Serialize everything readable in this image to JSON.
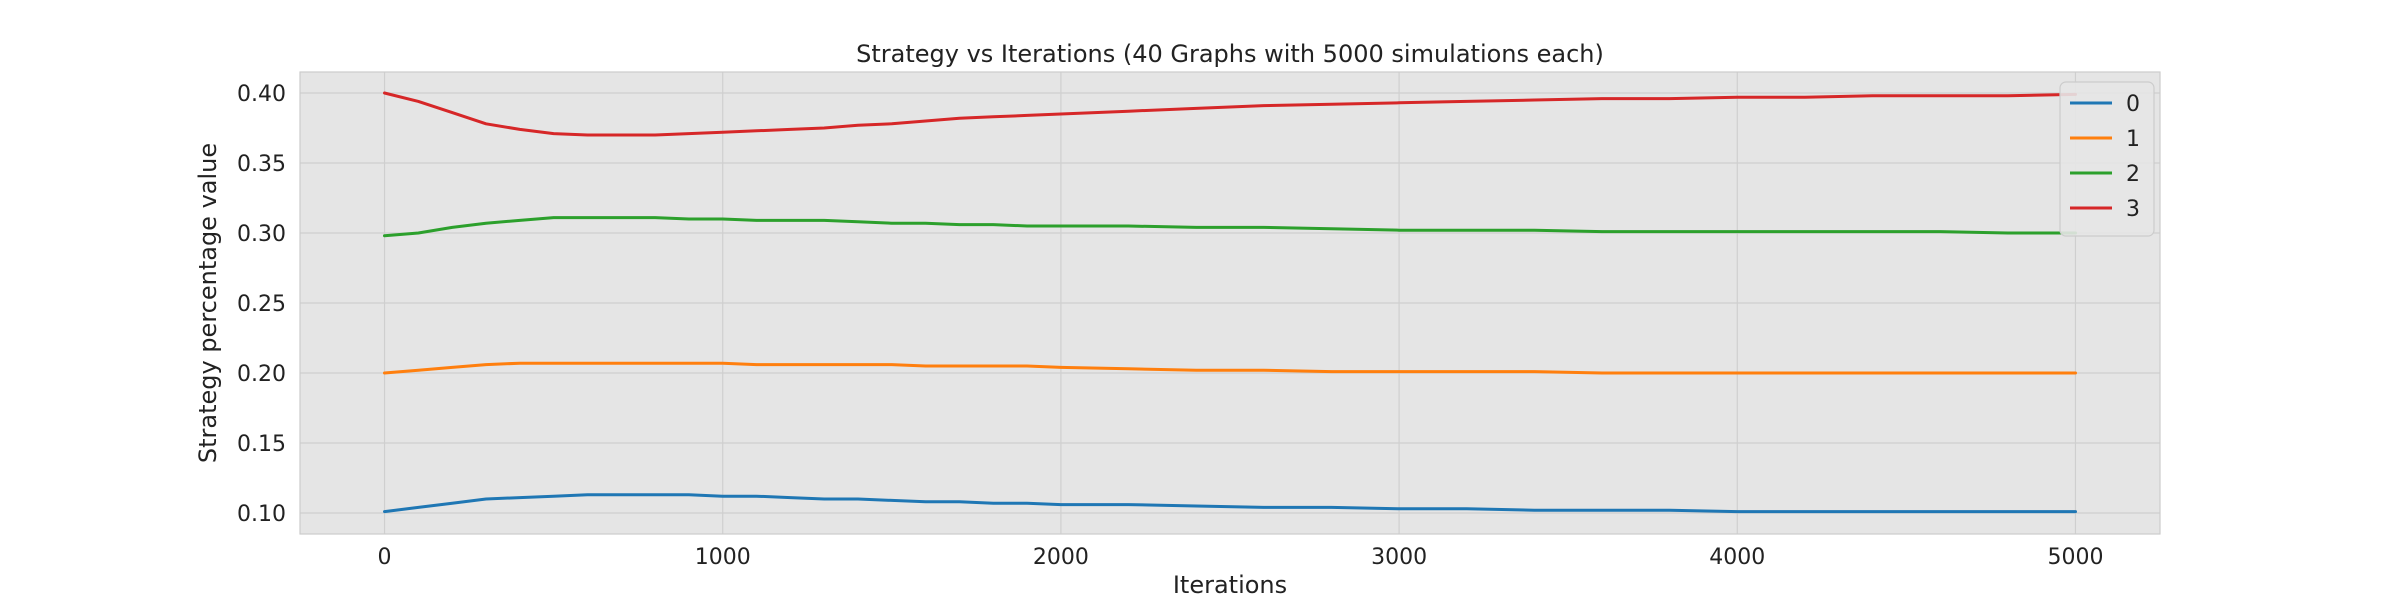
{
  "chart_data": {
    "type": "line",
    "title": "Strategy vs Iterations (40 Graphs with 5000 simulations each)",
    "xlabel": "Iterations",
    "ylabel": "Strategy percentage value",
    "xlim": [
      -250,
      5250
    ],
    "ylim": [
      0.085,
      0.415
    ],
    "xticks": [
      0,
      1000,
      2000,
      3000,
      4000,
      5000
    ],
    "yticks": [
      0.1,
      0.15,
      0.2,
      0.25,
      0.3,
      0.35,
      0.4
    ],
    "xtick_labels": [
      "0",
      "1000",
      "2000",
      "3000",
      "4000",
      "5000"
    ],
    "ytick_labels": [
      "0.10",
      "0.15",
      "0.20",
      "0.25",
      "0.30",
      "0.35",
      "0.40"
    ],
    "grid": true,
    "background": "#e5e5e5",
    "gridColor": "#cfcfcf",
    "legend": {
      "position": "top-right"
    },
    "x": [
      0,
      100,
      200,
      300,
      400,
      500,
      600,
      700,
      800,
      900,
      1000,
      1100,
      1200,
      1300,
      1400,
      1500,
      1600,
      1700,
      1800,
      1900,
      2000,
      2200,
      2400,
      2600,
      2800,
      3000,
      3200,
      3400,
      3600,
      3800,
      4000,
      4200,
      4400,
      4600,
      4800,
      5000
    ],
    "series": [
      {
        "name": "0",
        "color": "#1f77b4",
        "values": [
          0.101,
          0.104,
          0.107,
          0.11,
          0.111,
          0.112,
          0.113,
          0.113,
          0.113,
          0.113,
          0.112,
          0.112,
          0.111,
          0.11,
          0.11,
          0.109,
          0.108,
          0.108,
          0.107,
          0.107,
          0.106,
          0.106,
          0.105,
          0.104,
          0.104,
          0.103,
          0.103,
          0.102,
          0.102,
          0.102,
          0.101,
          0.101,
          0.101,
          0.101,
          0.101,
          0.101
        ]
      },
      {
        "name": "1",
        "color": "#ff7f0e",
        "values": [
          0.2,
          0.202,
          0.204,
          0.206,
          0.207,
          0.207,
          0.207,
          0.207,
          0.207,
          0.207,
          0.207,
          0.206,
          0.206,
          0.206,
          0.206,
          0.206,
          0.205,
          0.205,
          0.205,
          0.205,
          0.204,
          0.203,
          0.202,
          0.202,
          0.201,
          0.201,
          0.201,
          0.201,
          0.2,
          0.2,
          0.2,
          0.2,
          0.2,
          0.2,
          0.2,
          0.2
        ]
      },
      {
        "name": "2",
        "color": "#2ca02c",
        "values": [
          0.298,
          0.3,
          0.304,
          0.307,
          0.309,
          0.311,
          0.311,
          0.311,
          0.311,
          0.31,
          0.31,
          0.309,
          0.309,
          0.309,
          0.308,
          0.307,
          0.307,
          0.306,
          0.306,
          0.305,
          0.305,
          0.305,
          0.304,
          0.304,
          0.303,
          0.302,
          0.302,
          0.302,
          0.301,
          0.301,
          0.301,
          0.301,
          0.301,
          0.301,
          0.3,
          0.3
        ]
      },
      {
        "name": "3",
        "color": "#d62728",
        "values": [
          0.4,
          0.394,
          0.386,
          0.378,
          0.374,
          0.371,
          0.37,
          0.37,
          0.37,
          0.371,
          0.372,
          0.373,
          0.374,
          0.375,
          0.377,
          0.378,
          0.38,
          0.382,
          0.383,
          0.384,
          0.385,
          0.387,
          0.389,
          0.391,
          0.392,
          0.393,
          0.394,
          0.395,
          0.396,
          0.396,
          0.397,
          0.397,
          0.398,
          0.398,
          0.398,
          0.399
        ]
      }
    ]
  }
}
